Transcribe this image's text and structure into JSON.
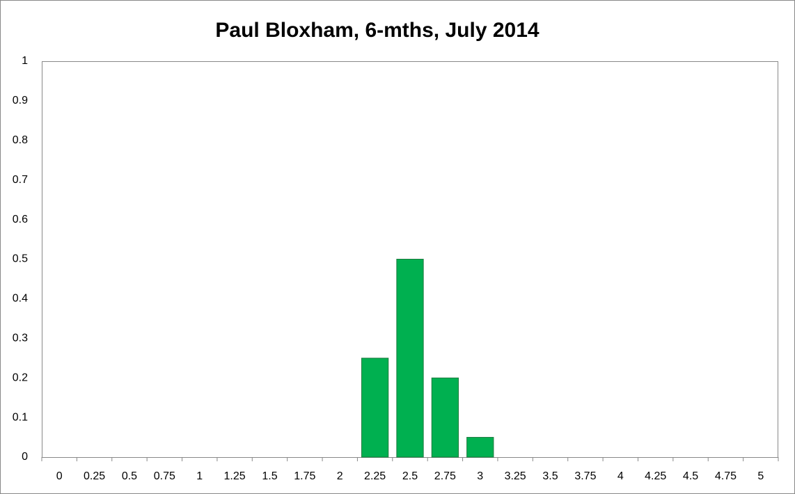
{
  "chart_data": {
    "type": "bar",
    "title": "Paul Bloxham, 6-mths, July 2014",
    "categories": [
      "0",
      "0.25",
      "0.5",
      "0.75",
      "1",
      "1.25",
      "1.5",
      "1.75",
      "2",
      "2.25",
      "2.5",
      "2.75",
      "3",
      "3.25",
      "3.5",
      "3.75",
      "4",
      "4.25",
      "4.5",
      "4.75",
      "5"
    ],
    "values": [
      0,
      0,
      0,
      0,
      0,
      0,
      0,
      0,
      0,
      0.25,
      0.5,
      0.2,
      0.05,
      0,
      0,
      0,
      0,
      0,
      0,
      0,
      0
    ],
    "color": "#00b050",
    "ylim": [
      0,
      1
    ],
    "yticks": [
      0,
      0.1,
      0.2,
      0.3,
      0.4,
      0.5,
      0.6,
      0.7,
      0.8,
      0.9,
      1
    ],
    "grid": false
  }
}
